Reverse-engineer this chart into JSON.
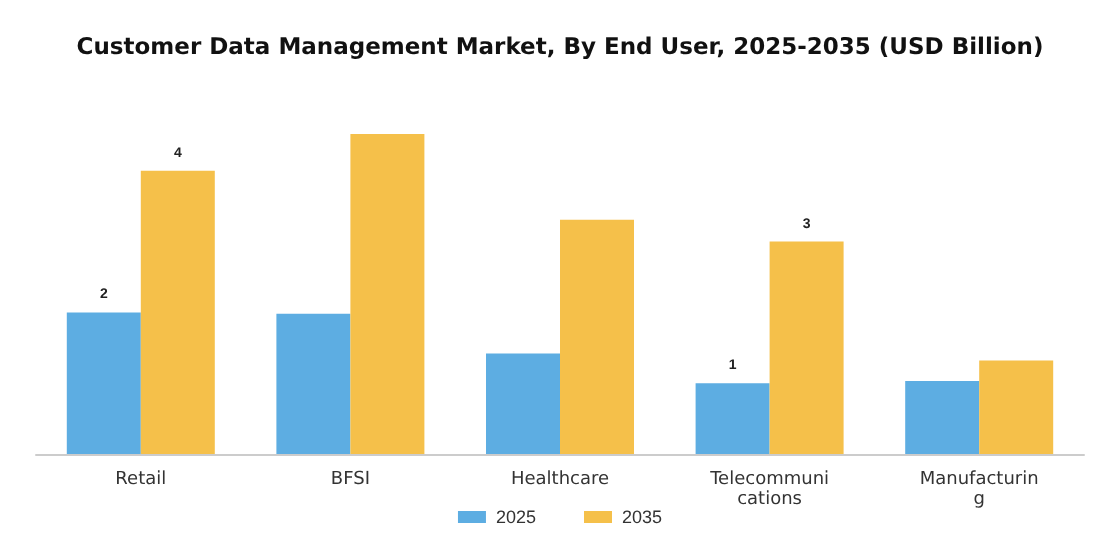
{
  "chart_data": {
    "type": "bar",
    "title": "Customer Data Management Market, By End User, 2025-2035 (USD Billion)",
    "categories": [
      "Retail",
      "BFSI",
      "Healthcare",
      "Telecommunications",
      "Manufacturing"
    ],
    "legend": "bottom",
    "series": [
      {
        "name": "2025",
        "color": "#5dade2",
        "values": [
          2,
          1.98,
          1.42,
          1,
          1.03
        ],
        "value_labels": [
          "2",
          null,
          null,
          "1",
          null
        ]
      },
      {
        "name": "2035",
        "color": "#f5c04a",
        "values": [
          4,
          4.52,
          3.31,
          3,
          1.32
        ],
        "value_labels": [
          "4",
          null,
          null,
          "3",
          null
        ]
      }
    ]
  }
}
